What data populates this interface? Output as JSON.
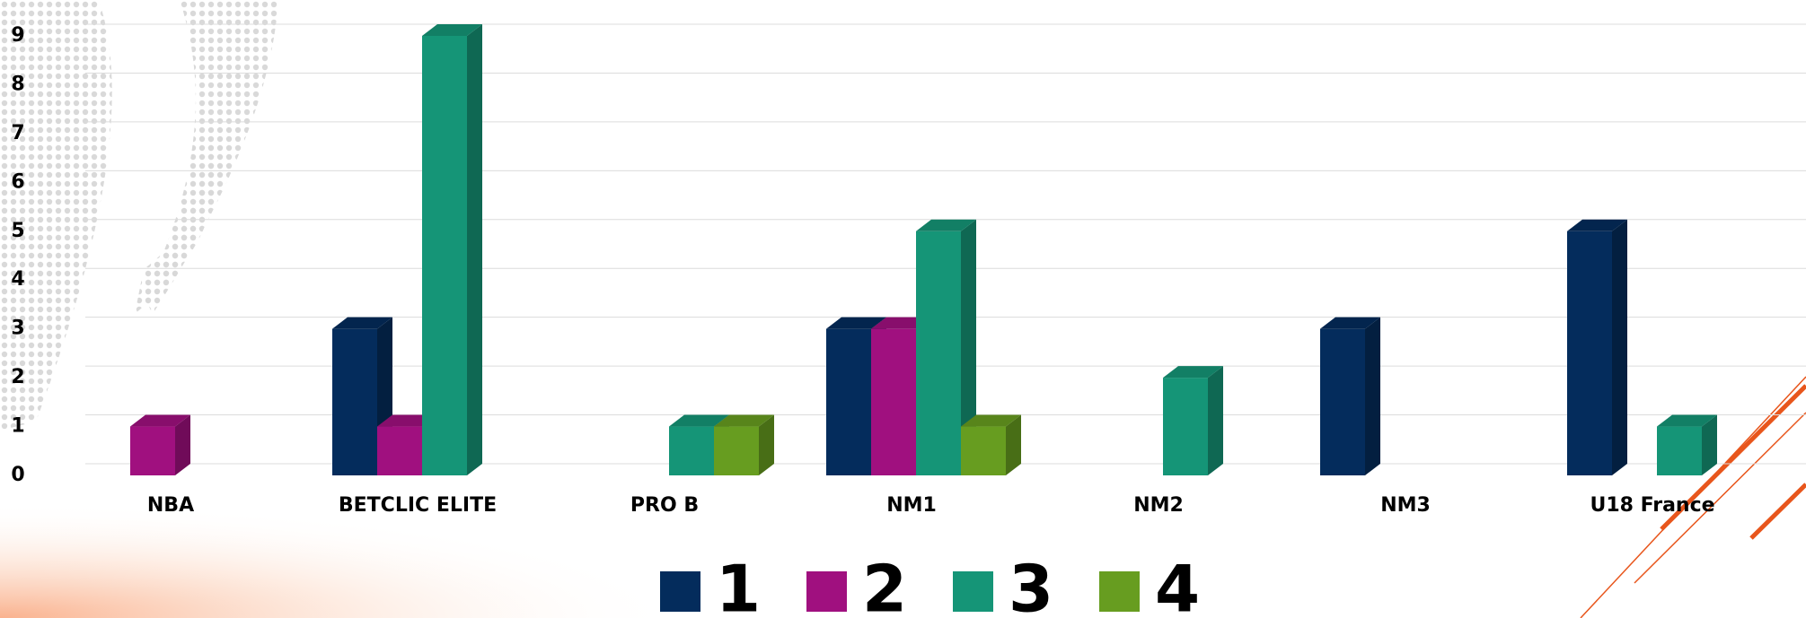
{
  "chart_data": {
    "type": "bar3d",
    "categories": [
      "NBA",
      "BETCLIC ELITE",
      "PRO B",
      "NM1",
      "NM2",
      "NM3",
      "U18  France"
    ],
    "series": [
      {
        "name": "1",
        "color": "#042c5c",
        "values": [
          0,
          3,
          0,
          3,
          0,
          3,
          5
        ]
      },
      {
        "name": "2",
        "color": "#a0107f",
        "values": [
          1,
          1,
          0,
          3,
          0,
          0,
          0
        ]
      },
      {
        "name": "3",
        "color": "#159577",
        "values": [
          0,
          9,
          1,
          5,
          2,
          0,
          1
        ]
      },
      {
        "name": "4",
        "color": "#679d20",
        "values": [
          0,
          0,
          1,
          1,
          0,
          0,
          0
        ]
      }
    ],
    "ylim": [
      0,
      9
    ],
    "yticks": [
      0,
      1,
      2,
      3,
      4,
      5,
      6,
      7,
      8,
      9
    ],
    "grid": true
  }
}
